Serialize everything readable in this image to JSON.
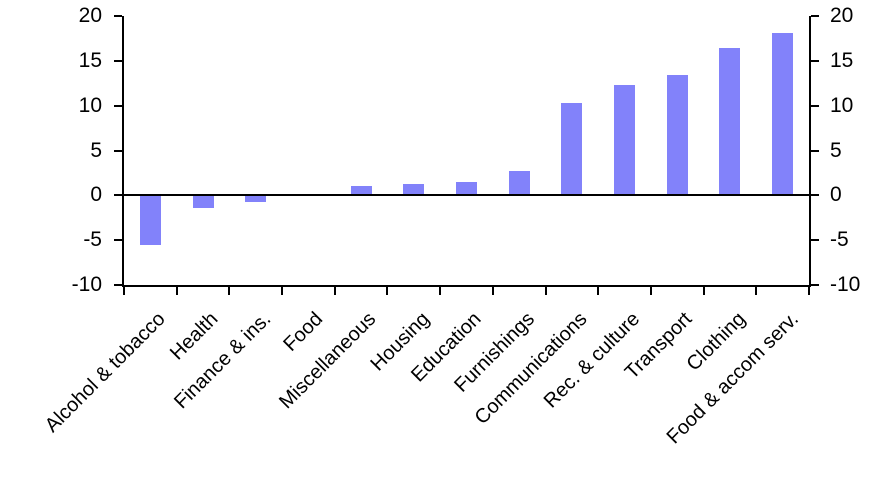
{
  "chart_data": {
    "type": "bar",
    "categories": [
      "Alcohol & tobacco",
      "Health",
      "Finance & ins.",
      "Food",
      "Miscellaneous",
      "Housing",
      "Education",
      "Furnishings",
      "Communications",
      "Rec. & culture",
      "Transport",
      "Clothing",
      "Food & accom serv."
    ],
    "values": [
      -5.6,
      -1.5,
      -0.8,
      0,
      1.0,
      1.3,
      1.5,
      2.7,
      10.3,
      12.3,
      13.4,
      16.4,
      18.1
    ],
    "title": "",
    "xlabel": "",
    "ylabel": "",
    "ylim": [
      -10,
      20
    ],
    "y_ticks": [
      20,
      15,
      10,
      5,
      0,
      -5,
      -10
    ],
    "y_axis_sides": [
      "left",
      "right"
    ],
    "grid": false,
    "legend": false,
    "bar_color": "#8282fa",
    "axis_color": "#000000",
    "background_color": "#ffffff"
  }
}
